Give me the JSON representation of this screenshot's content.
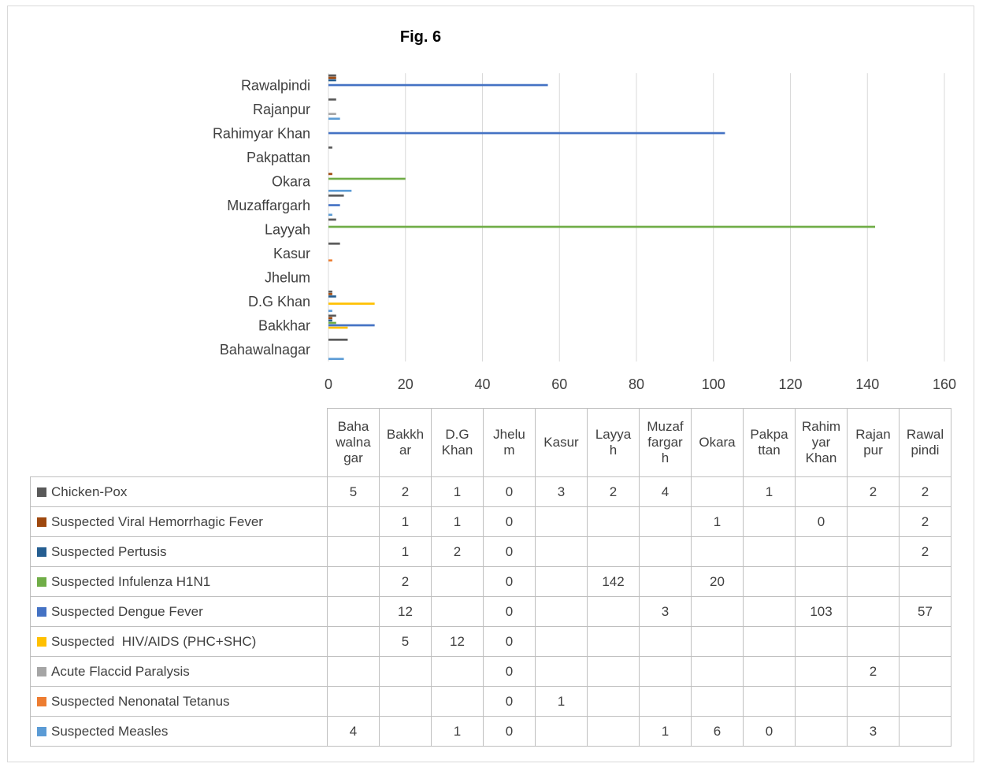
{
  "chart_data": {
    "type": "bar",
    "orientation": "horizontal",
    "title": "Fig. 6",
    "categories": [
      "Bahawalnagar",
      "Bakkhar",
      "D.G Khan",
      "Jhelum",
      "Kasur",
      "Layyah",
      "Muzaffargarh",
      "Okara",
      "Pakpattan",
      "Rahimyar Khan",
      "Rajanpur",
      "Rawalpindi"
    ],
    "table_headers": [
      "Baha walna gar",
      "Bakkh ar",
      "D.G Khan",
      "Jhelu m",
      "Kasur",
      "Layya h",
      "Muzaf fargar h",
      "Okara",
      "Pakpa ttan",
      "Rahim yar Khan",
      "Rajan pur",
      "Rawal pindi"
    ],
    "xlim": [
      0,
      160
    ],
    "x_ticks": [
      0,
      20,
      40,
      60,
      80,
      100,
      120,
      140,
      160
    ],
    "grid": "vertical",
    "legend": "data-table",
    "series": [
      {
        "name": "Chicken-Pox",
        "color": "#595959",
        "values": [
          5,
          2,
          1,
          0,
          3,
          2,
          4,
          null,
          1,
          null,
          2,
          2
        ]
      },
      {
        "name": "Suspected Viral Hemorrhagic Fever",
        "color": "#9e480e",
        "values": [
          null,
          1,
          1,
          0,
          null,
          null,
          null,
          1,
          null,
          0,
          null,
          2
        ]
      },
      {
        "name": "Suspected Pertusis",
        "color": "#255e91",
        "values": [
          null,
          1,
          2,
          0,
          null,
          null,
          null,
          null,
          null,
          null,
          null,
          2
        ]
      },
      {
        "name": "Suspected Infulenza H1N1",
        "color": "#70ad47",
        "values": [
          null,
          2,
          null,
          0,
          null,
          142,
          null,
          20,
          null,
          null,
          null,
          null
        ]
      },
      {
        "name": "Suspected Dengue Fever",
        "color": "#4472c4",
        "values": [
          null,
          12,
          null,
          0,
          null,
          null,
          3,
          null,
          null,
          103,
          null,
          57
        ]
      },
      {
        "name": "Suspected  HIV/AIDS (PHC+SHC)",
        "color": "#ffc000",
        "values": [
          null,
          5,
          12,
          0,
          null,
          null,
          null,
          null,
          null,
          null,
          null,
          null
        ]
      },
      {
        "name": "Acute Flaccid Paralysis",
        "color": "#a5a5a5",
        "values": [
          null,
          null,
          null,
          0,
          null,
          null,
          null,
          null,
          null,
          null,
          2,
          null
        ]
      },
      {
        "name": "Suspected Nenonatal Tetanus",
        "color": "#ed7d31",
        "values": [
          null,
          null,
          null,
          0,
          1,
          null,
          null,
          null,
          null,
          null,
          null,
          null
        ]
      },
      {
        "name": "Suspected Measles",
        "color": "#5b9bd5",
        "values": [
          4,
          null,
          1,
          0,
          null,
          null,
          1,
          6,
          0,
          null,
          3,
          null
        ]
      }
    ]
  }
}
